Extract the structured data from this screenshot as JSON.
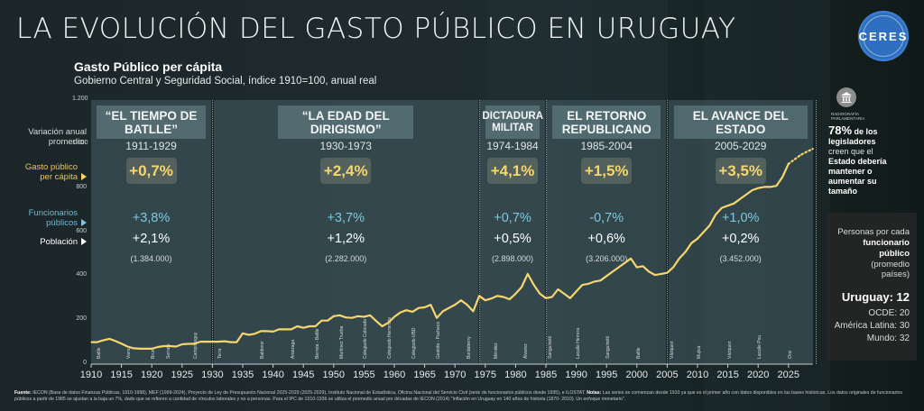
{
  "header": {
    "title": "LA EVOLUCIÓN DEL GASTO PÚBLICO EN URUGUAY",
    "logo_text": "CERES",
    "chart_title": "Gasto Público per cápita",
    "chart_subtitle": "Gobierno Central y Seguridad Social, índice 1910=100, anual real"
  },
  "legend": {
    "variation_label": "Variación anual promedio:",
    "gasto_label": "Gasto público per cápita",
    "funcionarios_label": "Funcionarios públicos",
    "poblacion_label": "Población",
    "colors": {
      "gasto": "#f5d76e",
      "funcionarios": "#7fc8df",
      "poblacion": "#ffffff"
    }
  },
  "periods": [
    {
      "name": "“EL TIEMPO DE BATLLE”",
      "years": "1911-1929",
      "gasto": "+0,7%",
      "funcionarios": "+3,8%",
      "poblacion": "+2,1%",
      "poblacion_total": "(1.384.000)",
      "start": 1910,
      "end": 1929.8
    },
    {
      "name": "“LA EDAD DEL DIRIGISMO”",
      "years": "1930-1973",
      "gasto": "+2,4%",
      "funcionarios": "+3,7%",
      "poblacion": "+1,2%",
      "poblacion_total": "(2.282.000)",
      "start": 1930.2,
      "end": 1973.8
    },
    {
      "name": "DICTADURA MILITAR",
      "years": "1974-1984",
      "gasto": "+4,1%",
      "funcionarios": "+0,7%",
      "poblacion": "+0,5%",
      "poblacion_total": "(2.898.000)",
      "start": 1974.2,
      "end": 1984.8
    },
    {
      "name": "EL RETORNO REPUBLICANO",
      "years": "1985-2004",
      "gasto": "+1,5%",
      "funcionarios": "-0,7%",
      "poblacion": "+0,6%",
      "poblacion_total": "(3.206.000)",
      "start": 1985.2,
      "end": 2004.8
    },
    {
      "name": "EL AVANCE DEL ESTADO",
      "years": "2005-2029",
      "gasto": "+3,5%",
      "funcionarios": "+1,0%",
      "poblacion": "+0,2%",
      "poblacion_total": "(3.452.000)",
      "start": 2005.2,
      "end": 2029
    }
  ],
  "sidebar": {
    "icon_caption": "RADIOGRAFÍA PARLAMENTARIA",
    "stat_big": "78%",
    "stat_t1": " de los",
    "stat_t2": "legisladores",
    "stat_t3": "creen que el",
    "stat_t4": "Estado debería mantener o aumentar su tamaño",
    "box_l1": "Personas por cada",
    "box_l2": "funcionario",
    "box_l3": "público",
    "box_l4": "(promedio",
    "box_l5": "países)",
    "uruguay": "Uruguay: 12",
    "ocde": "OCDE: 20",
    "latam": "América Latina: 30",
    "mundo": "Mundo: 32"
  },
  "footer": {
    "source_label": "Fuente:",
    "source_text": "IECON (Base de datos Finanzas Públicas, 1910-1998), MEF (1999-2024), Proyecto de Ley de Presupuesto Nacional 2025-2029 (2025-2029), Instituto Nacional de Estadística, Oficina Nacional del Servicio Civil (serie de funcionarios públicos desde 1995), e ILOSTAT.",
    "notes_label": "Notas:",
    "notes_text": "Las series se comienzan desde 1910 ya que es el primer año con datos disponibles en las bases históricas. Los datos originales de funcionarios públicos a partir de 1985 se ajustan a la baja un 7%, dado que se refieren a cantidad de vínculos laborales y no a personas. Para el IPC de 1910-1936 se utiliza el promedio anual por décadas de IECON (2014) \"Inflación en Uruguay en 140 años de historia (1870- 2010). Un enfoque monetario\"."
  },
  "chart_data": {
    "type": "line",
    "title": "Gasto Público per cápita",
    "subtitle": "Gobierno Central y Seguridad Social, índice 1910=100, anual real",
    "xlabel": "",
    "ylabel": "",
    "xlim": [
      1910,
      2029
    ],
    "ylim": [
      0,
      1200
    ],
    "x_ticks": [
      1910,
      1915,
      1920,
      1925,
      1930,
      1935,
      1940,
      1945,
      1950,
      1955,
      1960,
      1965,
      1970,
      1975,
      1980,
      1985,
      1990,
      1995,
      2000,
      2005,
      2010,
      2015,
      2020,
      2025
    ],
    "y_ticks": [
      0,
      200,
      400,
      600,
      800,
      1000,
      1200
    ],
    "y_tick_labels": [
      "0",
      "200",
      "400",
      "600",
      "800",
      "1.000",
      "1.200"
    ],
    "series": [
      {
        "name": "Gasto público per cápita",
        "color": "#f5d76e",
        "style": "solid",
        "x": [
          1910,
          1911,
          1912,
          1913,
          1914,
          1915,
          1916,
          1917,
          1918,
          1919,
          1920,
          1921,
          1922,
          1923,
          1924,
          1925,
          1926,
          1927,
          1928,
          1929,
          1930,
          1931,
          1932,
          1933,
          1934,
          1935,
          1936,
          1937,
          1938,
          1939,
          1940,
          1941,
          1942,
          1943,
          1944,
          1945,
          1946,
          1947,
          1948,
          1949,
          1950,
          1951,
          1952,
          1953,
          1954,
          1955,
          1956,
          1957,
          1958,
          1959,
          1960,
          1961,
          1962,
          1963,
          1964,
          1965,
          1966,
          1967,
          1968,
          1969,
          1970,
          1971,
          1972,
          1973,
          1974,
          1975,
          1976,
          1977,
          1978,
          1979,
          1980,
          1981,
          1982,
          1983,
          1984,
          1985,
          1986,
          1987,
          1988,
          1989,
          1990,
          1991,
          1992,
          1993,
          1994,
          1995,
          1996,
          1997,
          1998,
          1999,
          2000,
          2001,
          2002,
          2003,
          2004,
          2005,
          2006,
          2007,
          2008,
          2009,
          2010,
          2011,
          2012,
          2013,
          2014,
          2015,
          2016,
          2017,
          2018,
          2019,
          2020,
          2021,
          2022,
          2023,
          2024,
          2025
        ],
        "values": [
          100,
          100,
          108,
          115,
          105,
          93,
          80,
          72,
          70,
          70,
          70,
          78,
          82,
          82,
          80,
          90,
          92,
          92,
          102,
          102,
          102,
          102,
          104,
          100,
          100,
          140,
          133,
          138,
          150,
          150,
          148,
          158,
          158,
          158,
          172,
          165,
          172,
          172,
          198,
          198,
          218,
          222,
          212,
          210,
          218,
          215,
          222,
          196,
          172,
          188,
          215,
          235,
          245,
          238,
          255,
          258,
          270,
          210,
          240,
          255,
          270,
          290,
          270,
          240,
          310,
          290,
          298,
          310,
          305,
          295,
          320,
          350,
          410,
          360,
          320,
          300,
          305,
          340,
          320,
          300,
          330,
          360,
          365,
          375,
          380,
          400,
          420,
          440,
          460,
          480,
          440,
          445,
          420,
          405,
          410,
          415,
          440,
          480,
          510,
          550,
          570,
          600,
          630,
          680,
          710,
          720,
          730,
          750,
          770,
          790,
          800,
          805,
          805,
          810,
          850,
          910
        ]
      },
      {
        "name": "Proyección",
        "color": "#f5d76e",
        "style": "dotted",
        "x": [
          2025,
          2026,
          2027,
          2028,
          2029
        ],
        "values": [
          910,
          930,
          950,
          965,
          978
        ]
      }
    ],
    "president_labels": [
      {
        "year": 1911,
        "name": "Batlle"
      },
      {
        "year": 1916,
        "name": "Viera"
      },
      {
        "year": 1920,
        "name": "Brum"
      },
      {
        "year": 1922.5,
        "name": "Serrato"
      },
      {
        "year": 1927,
        "name": "Campisteguy"
      },
      {
        "year": 1931,
        "name": "Terra"
      },
      {
        "year": 1938,
        "name": "Baldomir"
      },
      {
        "year": 1943,
        "name": "Amézaga"
      },
      {
        "year": 1947,
        "name": "Berreta - Batlle"
      },
      {
        "year": 1951,
        "name": "Martínez Trueba"
      },
      {
        "year": 1955,
        "name": "Colegiado Colorado"
      },
      {
        "year": 1959,
        "name": "Colegiado Herrerista"
      },
      {
        "year": 1963,
        "name": "Colegiado UBD"
      },
      {
        "year": 1967,
        "name": "Gestido - Pacheco"
      },
      {
        "year": 1972,
        "name": "Bordaberry"
      },
      {
        "year": 1976.5,
        "name": "Méndez"
      },
      {
        "year": 1981.5,
        "name": "Álvarez"
      },
      {
        "year": 1985.5,
        "name": "Sanguinetti"
      },
      {
        "year": 1990,
        "name": "Lacalle Herrera"
      },
      {
        "year": 1995,
        "name": "Sanguinetti"
      },
      {
        "year": 2000,
        "name": "Batlle"
      },
      {
        "year": 2005.5,
        "name": "Vázquez"
      },
      {
        "year": 2010,
        "name": "Mujica"
      },
      {
        "year": 2015,
        "name": "Vázquez"
      },
      {
        "year": 2020,
        "name": "Lacalle Pou"
      },
      {
        "year": 2025,
        "name": "Orsi"
      }
    ],
    "grid": false,
    "legend": "left"
  }
}
